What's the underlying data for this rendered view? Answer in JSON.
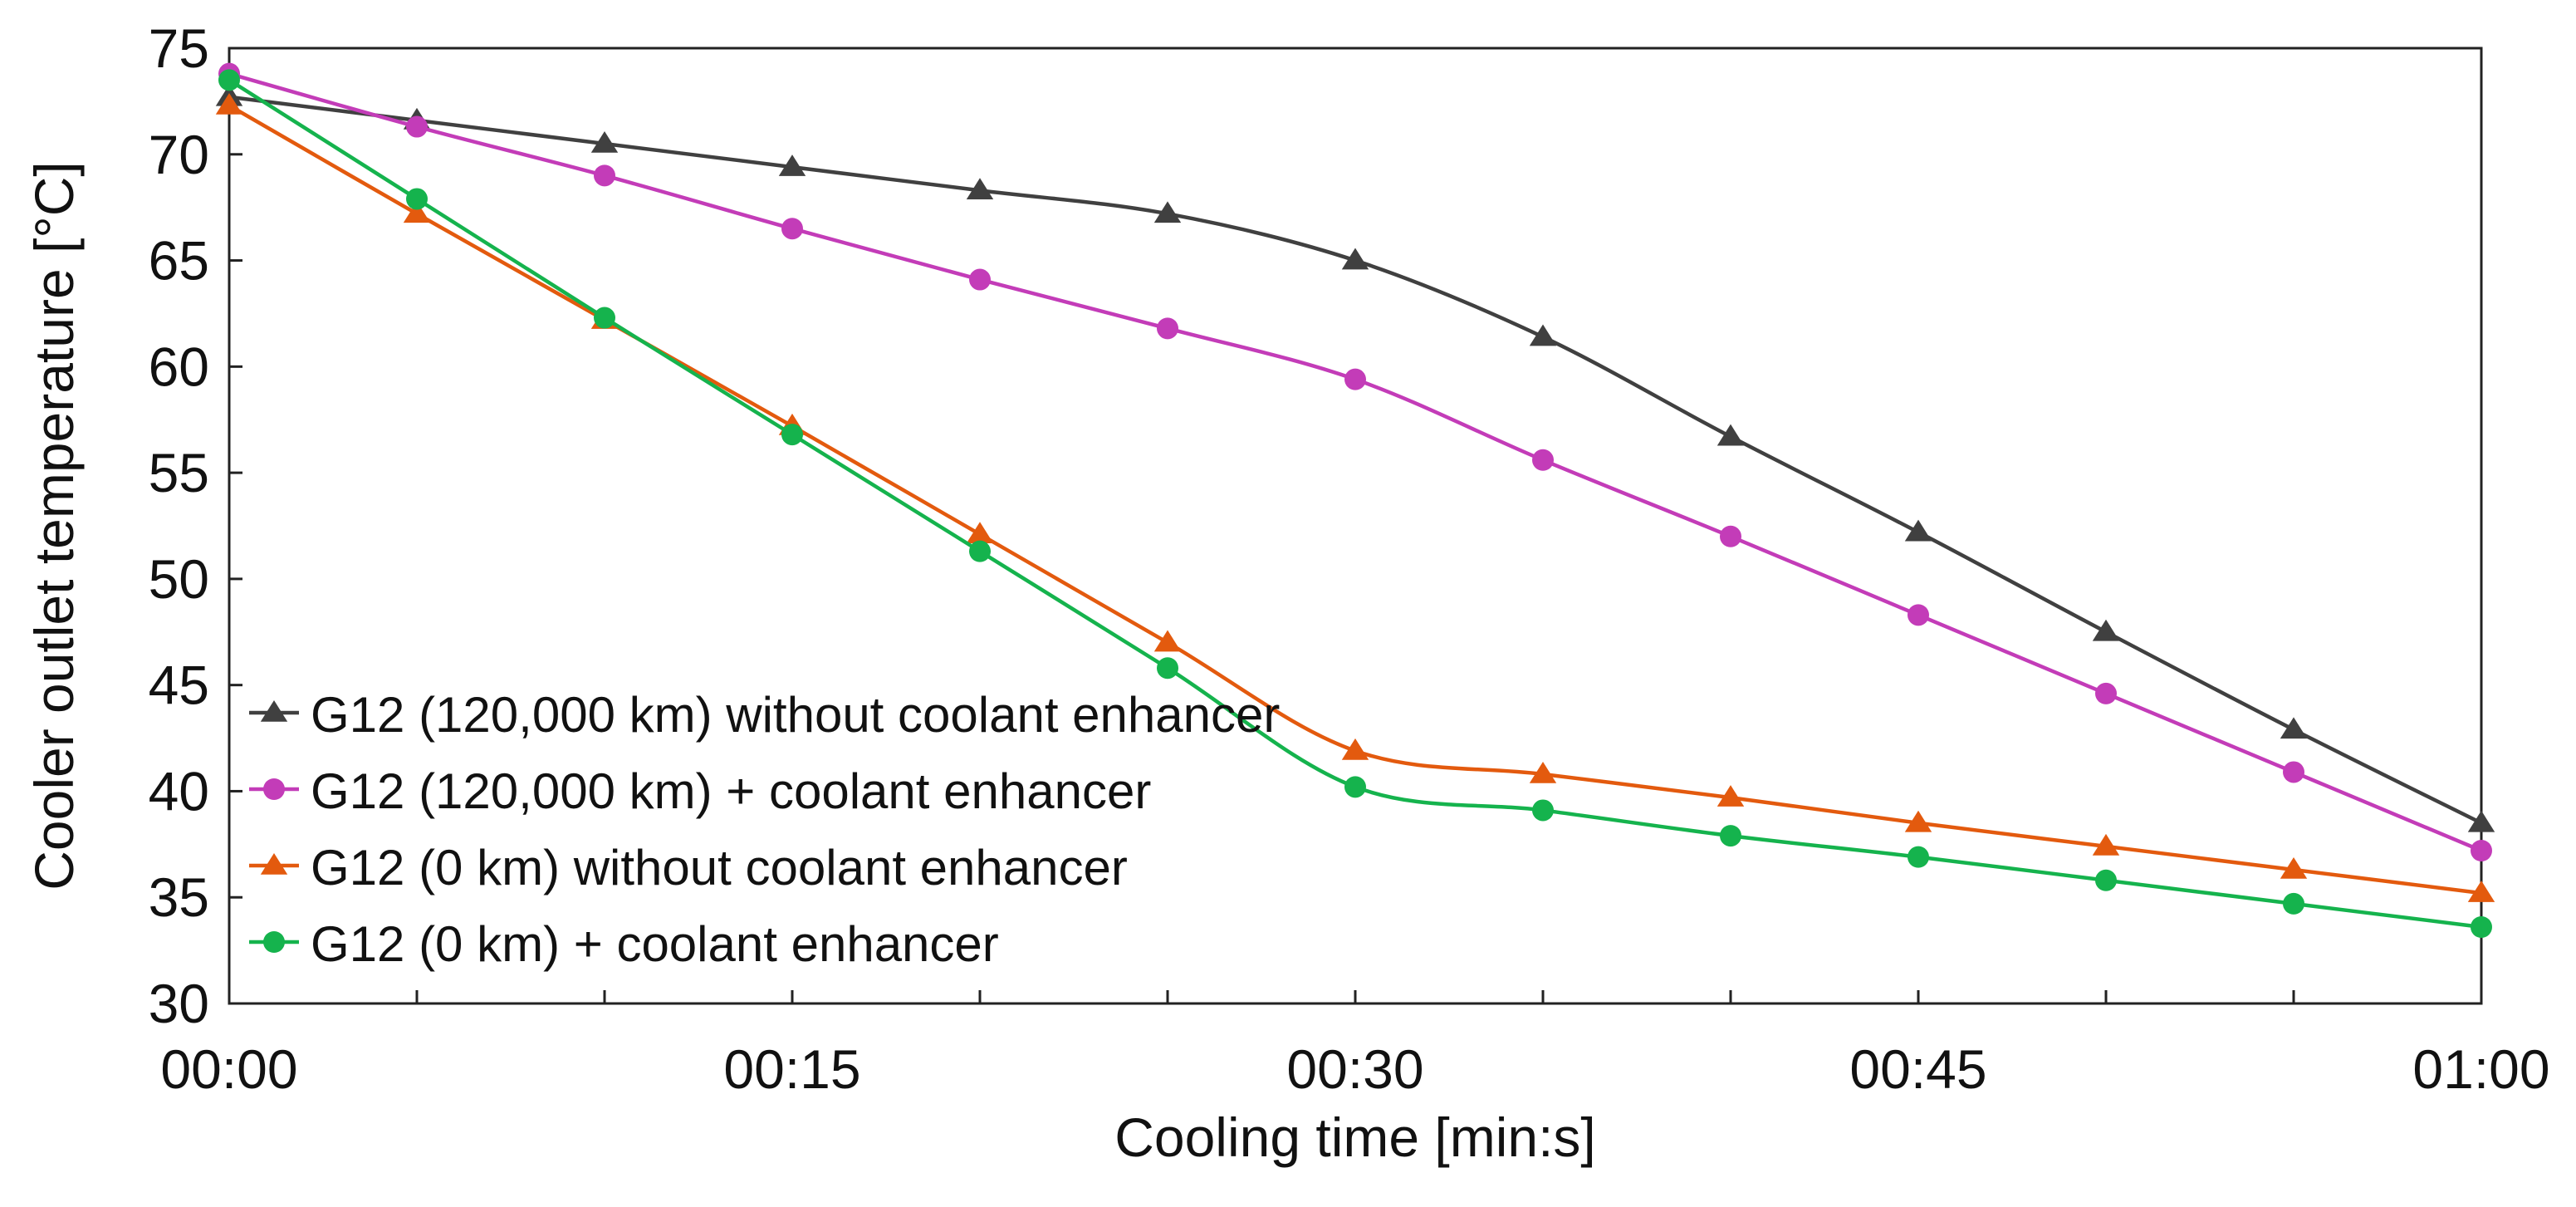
{
  "chart_data": {
    "type": "line",
    "title": "",
    "xlabel": "Cooling time [min:s]",
    "ylabel": "Cooler outlet temperature [°C]",
    "x_tick_labels": [
      "00:00",
      "00:15",
      "00:30",
      "00:45",
      "01:00"
    ],
    "x_tick_seconds": [
      0,
      15,
      30,
      45,
      60
    ],
    "xlim": [
      0,
      60
    ],
    "ylim": [
      30,
      75
    ],
    "y_ticks": [
      30,
      35,
      40,
      45,
      50,
      55,
      60,
      65,
      70,
      75
    ],
    "grid": false,
    "legend_position": "bottom-left",
    "x": [
      0,
      5,
      10,
      15,
      20,
      25,
      30,
      35,
      40,
      45,
      50,
      55,
      60
    ],
    "series": [
      {
        "name": "G12 (120,000 km) without coolant enhancer",
        "marker": "triangle",
        "color": "#404040",
        "values": [
          72.7,
          71.6,
          70.5,
          69.4,
          68.3,
          67.2,
          65.0,
          61.4,
          56.7,
          52.2,
          47.5,
          42.9,
          38.5
        ]
      },
      {
        "name": "G12 (120,000 km) + coolant enhancer",
        "marker": "circle",
        "color": "#c33cb8",
        "values": [
          73.8,
          71.3,
          69.0,
          66.5,
          64.1,
          61.8,
          59.4,
          55.6,
          52.0,
          48.3,
          44.6,
          40.9,
          37.2
        ]
      },
      {
        "name": "G12 (0 km) without coolant enhancer",
        "marker": "triangle",
        "color": "#e35a0e",
        "values": [
          72.3,
          67.2,
          62.2,
          57.2,
          52.1,
          47.0,
          41.9,
          40.8,
          39.7,
          38.5,
          37.4,
          36.3,
          35.2
        ]
      },
      {
        "name": "G12 (0 km) + coolant enhancer",
        "marker": "circle",
        "color": "#15b34d",
        "values": [
          73.5,
          67.9,
          62.3,
          56.8,
          51.3,
          45.8,
          40.2,
          39.1,
          37.9,
          36.9,
          35.8,
          34.7,
          33.6
        ]
      }
    ]
  }
}
